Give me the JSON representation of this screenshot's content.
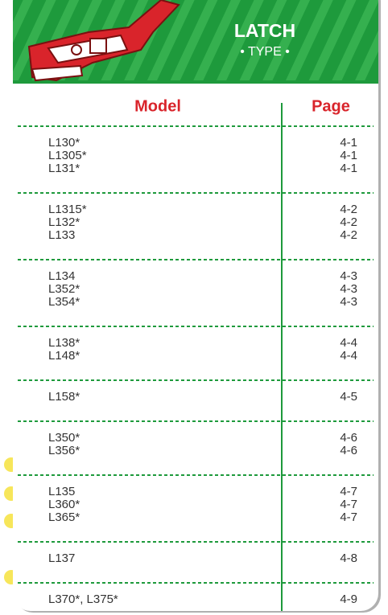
{
  "header": {
    "title": "LATCH",
    "subtitle": "• TYPE •"
  },
  "table": {
    "columns": [
      "Model",
      "Page"
    ],
    "groups": [
      [
        [
          "L130*",
          "4-1"
        ],
        [
          "L1305*",
          "4-1"
        ],
        [
          "L131*",
          "4-1"
        ]
      ],
      [
        [
          "L1315*",
          "4-2"
        ],
        [
          "L132*",
          "4-2"
        ],
        [
          "L133",
          "4-2"
        ]
      ],
      [
        [
          "L134",
          "4-3"
        ],
        [
          "L352*",
          "4-3"
        ],
        [
          "L354*",
          "4-3"
        ]
      ],
      [
        [
          "L138*",
          "4-4"
        ],
        [
          "L148*",
          "4-4"
        ]
      ],
      [
        [
          "L158*",
          "4-5"
        ]
      ],
      [
        [
          "L350*",
          "4-6"
        ],
        [
          "L356*",
          "4-6"
        ]
      ],
      [
        [
          "L135",
          "4-7"
        ],
        [
          "L360*",
          "4-7"
        ],
        [
          "L365*",
          "4-7"
        ]
      ],
      [
        [
          "L137",
          "4-8"
        ]
      ],
      [
        [
          "L370*, L375*",
          "4-9"
        ]
      ]
    ]
  }
}
